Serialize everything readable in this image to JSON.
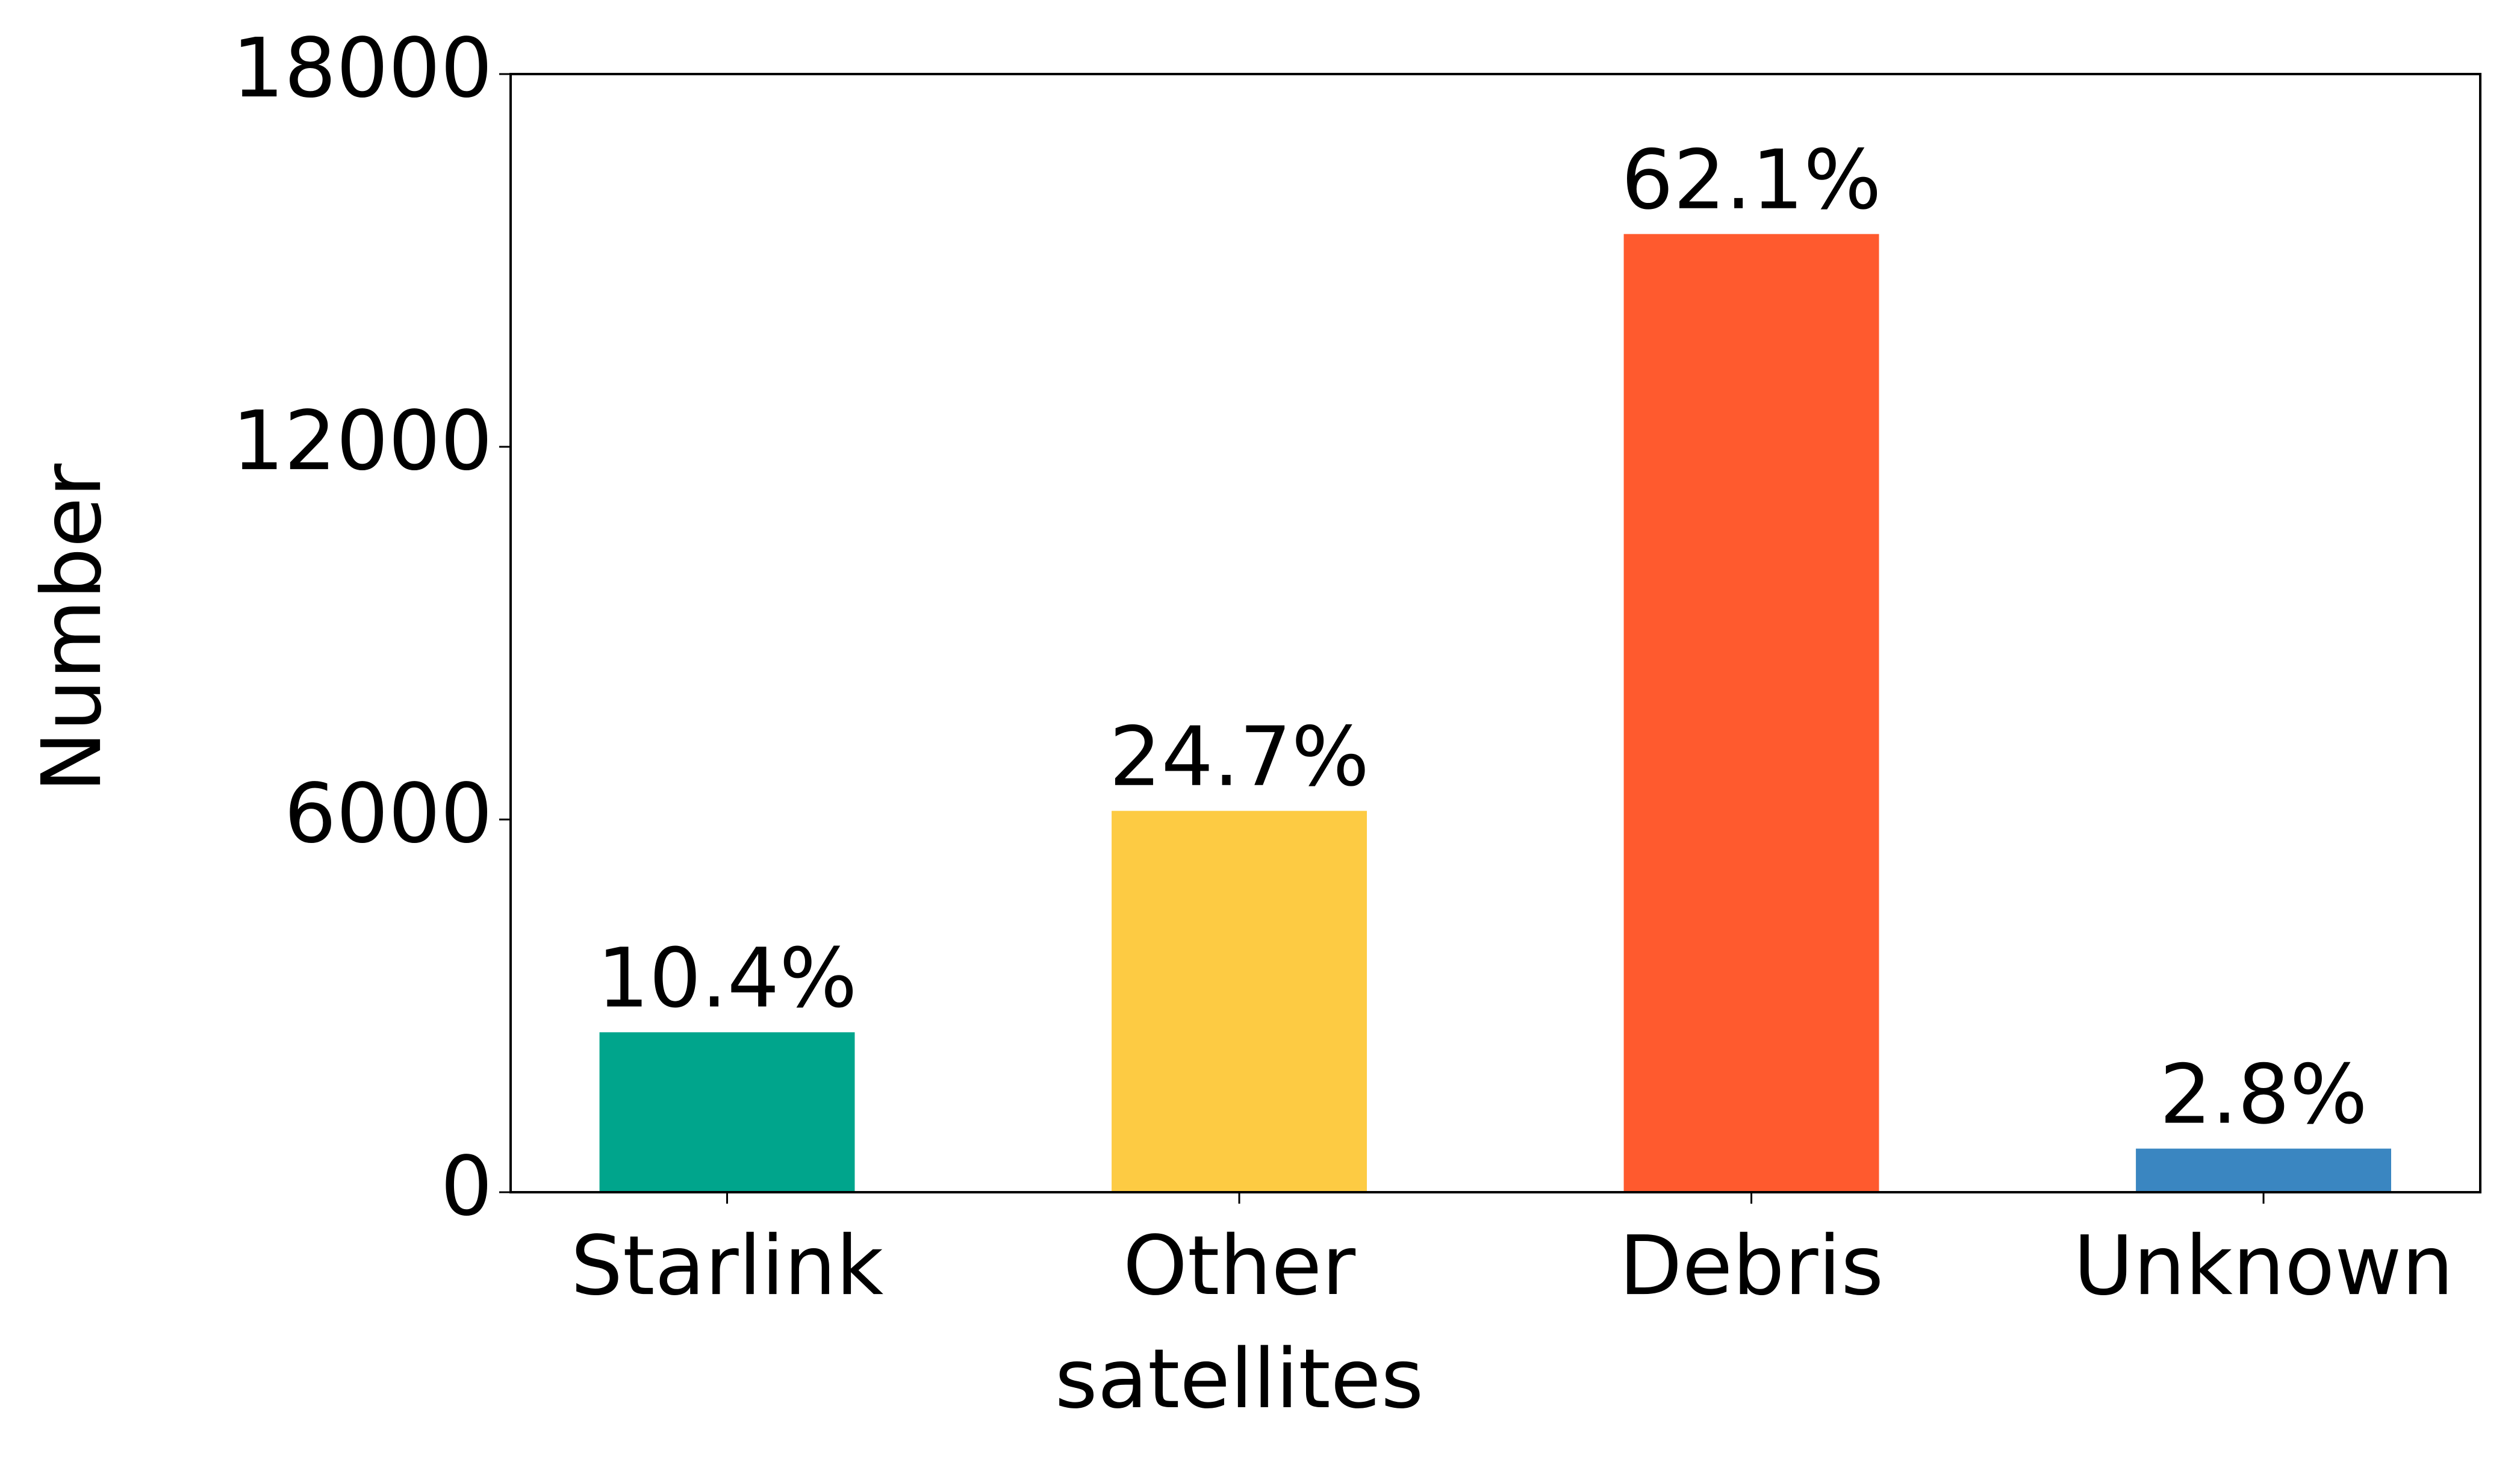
{
  "chart_data": {
    "type": "bar",
    "y_label": "Number",
    "categories": [
      "Starlink",
      "Other satellites",
      "Debris",
      "Unknown"
    ],
    "values": [
      2575,
      6139,
      15425,
      702
    ],
    "share_labels": [
      "10.4%",
      "24.7%",
      "62.1%",
      "2.8%"
    ],
    "colors": [
      "#00a58c",
      "#fdcb43",
      "#ff5a2e",
      "#3a86c1"
    ],
    "ylim": [
      0,
      18000
    ],
    "yticks": [
      0,
      6000,
      12000,
      18000
    ],
    "grid": false
  }
}
